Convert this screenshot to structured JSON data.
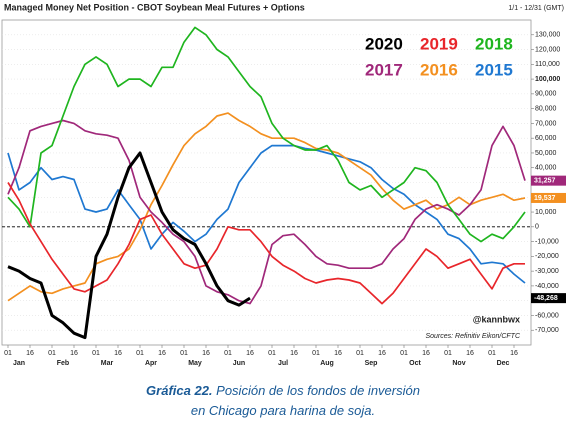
{
  "chart_data": {
    "type": "line",
    "title": "Managed Money Net Position - CBOT Soybean Meal Futures + Options",
    "date_range": "1/1 - 12/31 (GMT)",
    "watermark": "@kannbwx",
    "source": "Sources: Refinitiv Eikon/CFTC",
    "caption_label": "Gráfica 22.",
    "caption_text": "Posición de los fondos de inversión en Chicago para harina de soja.",
    "categories": [
      "01",
      null,
      "16",
      null,
      "01",
      null,
      "16",
      null,
      "01",
      null,
      "16",
      null,
      "01",
      null,
      "16",
      null,
      "01",
      null,
      "16",
      null,
      "01",
      null,
      "16",
      null,
      "01",
      null,
      "16",
      null,
      "01",
      null,
      "16",
      null,
      "01",
      null,
      "16",
      null,
      "01",
      null,
      "16",
      null,
      "01",
      null,
      "16",
      null,
      "01",
      null,
      "16",
      null
    ],
    "months": [
      "Jan",
      "Feb",
      "Mar",
      "Apr",
      "May",
      "Jun",
      "Jul",
      "Aug",
      "Sep",
      "Oct",
      "Nov",
      "Dec"
    ],
    "ylim": [
      -80000,
      140000
    ],
    "yticks": [
      {
        "value": 130000,
        "label": "130,000"
      },
      {
        "value": 120000,
        "label": "120,000"
      },
      {
        "value": 110000,
        "label": "110,000"
      },
      {
        "value": 100000,
        "label": "100,000"
      },
      {
        "value": 90000,
        "label": "90,000"
      },
      {
        "value": 80000,
        "label": "80,000"
      },
      {
        "value": 70000,
        "label": "70,000"
      },
      {
        "value": 60000,
        "label": "60,000"
      },
      {
        "value": 50000,
        "label": "50,000"
      },
      {
        "value": 40000,
        "label": "40,000"
      },
      {
        "value": 30000,
        "label": "30,000"
      },
      {
        "value": 20000,
        "label": "20,000"
      },
      {
        "value": 10000,
        "label": "10,000"
      },
      0,
      {
        "value": -10000,
        "label": "-10,000"
      },
      {
        "value": -20000,
        "label": "-20,000"
      },
      {
        "value": -30000,
        "label": "-30,000"
      },
      {
        "value": -40000,
        "label": "-40,000"
      },
      {
        "value": -50000,
        "label": "-50,000"
      },
      {
        "value": -60000,
        "label": "-60,000"
      },
      {
        "value": -70000,
        "label": "-70,000"
      }
    ],
    "grid": true,
    "series": [
      {
        "name": "2020",
        "color": "#000000",
        "end_label": "-48,268",
        "values": [
          -27000,
          -30000,
          -35000,
          -38000,
          -60000,
          -65000,
          -72000,
          -75000,
          -20000,
          -5000,
          20000,
          40000,
          50000,
          30000,
          10000,
          -2000,
          -8000,
          -12000,
          -25000,
          -40000,
          -50000,
          -53000,
          -48268,
          null,
          null,
          null,
          null,
          null,
          null,
          null,
          null,
          null,
          null,
          null,
          null,
          null,
          null,
          null,
          null,
          null,
          null,
          null,
          null,
          null,
          null,
          null,
          null,
          null
        ]
      },
      {
        "name": "2019",
        "color": "#e8262b",
        "values": [
          30000,
          18000,
          2000,
          -10000,
          -22000,
          -32000,
          -42000,
          -44000,
          -40000,
          -36000,
          -25000,
          -12000,
          5000,
          8000,
          -5000,
          -15000,
          -25000,
          -28000,
          -26000,
          -15000,
          0,
          -2000,
          -2000,
          -10000,
          -20000,
          -26000,
          -30000,
          -35000,
          -38000,
          -36000,
          -35000,
          -36000,
          -38000,
          -45000,
          -52000,
          -45000,
          -35000,
          -25000,
          -15000,
          -20000,
          -28000,
          -25000,
          -22000,
          -32000,
          -42000,
          -28000,
          -25000,
          -25000
        ]
      },
      {
        "name": "2018",
        "color": "#1fb51f",
        "values": [
          20000,
          12000,
          0,
          50000,
          55000,
          75000,
          95000,
          110000,
          115000,
          110000,
          95000,
          100000,
          100000,
          95000,
          108000,
          108000,
          125000,
          135000,
          130000,
          120000,
          115000,
          105000,
          95000,
          88000,
          70000,
          60000,
          55000,
          52000,
          52000,
          55000,
          45000,
          30000,
          25000,
          28000,
          20000,
          25000,
          30000,
          40000,
          38000,
          30000,
          15000,
          5000,
          -5000,
          -10000,
          -5000,
          -8000,
          0,
          10000
        ]
      },
      {
        "name": "2017",
        "color": "#a0287a",
        "end_label": "31,257",
        "values": [
          22000,
          40000,
          65000,
          68000,
          70000,
          72000,
          70000,
          65000,
          63000,
          62000,
          60000,
          45000,
          20000,
          10000,
          3000,
          -5000,
          -10000,
          -20000,
          -40000,
          -44000,
          -46000,
          -50000,
          -52000,
          -40000,
          -12000,
          -6000,
          -5000,
          -12000,
          -20000,
          -25000,
          -26000,
          -28000,
          -28000,
          -28000,
          -25000,
          -15000,
          -8000,
          5000,
          12000,
          15000,
          12000,
          8000,
          15000,
          25000,
          55000,
          68000,
          55000,
          31257
        ]
      },
      {
        "name": "2016",
        "color": "#f39020",
        "end_label": "19,537",
        "values": [
          -50000,
          -45000,
          -40000,
          -44000,
          -45000,
          -42000,
          -40000,
          -38000,
          -25000,
          -22000,
          -20000,
          -15000,
          -2000,
          15000,
          28000,
          42000,
          55000,
          63000,
          68000,
          75000,
          77000,
          72000,
          68000,
          63000,
          60000,
          60000,
          60000,
          57000,
          53000,
          52000,
          50000,
          45000,
          40000,
          35000,
          26000,
          18000,
          12000,
          15000,
          18000,
          12000,
          15000,
          20000,
          15000,
          18000,
          20000,
          22000,
          18000,
          19537
        ]
      },
      {
        "name": "2015",
        "color": "#1f78d1",
        "values": [
          50000,
          25000,
          30000,
          40000,
          32000,
          34000,
          32000,
          12000,
          10000,
          12000,
          25000,
          15000,
          5000,
          -15000,
          -5000,
          3000,
          -3000,
          -10000,
          -5000,
          5000,
          12000,
          30000,
          40000,
          50000,
          55000,
          55000,
          55000,
          53000,
          52000,
          50000,
          48000,
          46000,
          44000,
          40000,
          32000,
          26000,
          22000,
          15000,
          10000,
          5000,
          -5000,
          -8000,
          -15000,
          -25000,
          -24000,
          -25000,
          -32000,
          -38000
        ]
      }
    ]
  }
}
